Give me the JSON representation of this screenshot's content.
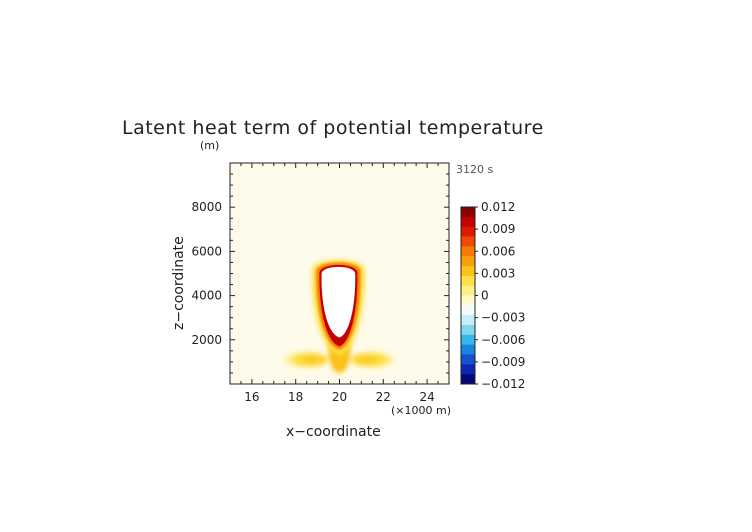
{
  "chart_data": {
    "type": "heatmap",
    "title": "Latent heat term of potential temperature",
    "time_label": "3120 s",
    "xlabel": "x−coordinate",
    "ylabel": "z−coordinate",
    "x_unit_label": "(×1000 m)",
    "y_unit_label": "(m)",
    "xlim": [
      15,
      25
    ],
    "ylim": [
      0,
      10000
    ],
    "xticks": [
      16,
      18,
      20,
      22,
      24
    ],
    "yticks": [
      2000,
      4000,
      6000,
      8000
    ],
    "xtick_labels": [
      "16",
      "18",
      "20",
      "22",
      "24"
    ],
    "ytick_labels": [
      "2000",
      "4000",
      "6000",
      "8000"
    ],
    "background_value": 0.0005,
    "colorbar": {
      "ticks": [
        0.012,
        0.009,
        0.006,
        0.003,
        0,
        -0.003,
        -0.006,
        -0.009,
        -0.012
      ],
      "tick_labels": [
        "0.012",
        "0.009",
        "0.006",
        "0.003",
        "0",
        "−0.003",
        "−0.006",
        "−0.009",
        "−0.012"
      ],
      "colors": [
        "#8b0000",
        "#c40000",
        "#e01a00",
        "#f04a00",
        "#f57b00",
        "#fa9e0a",
        "#fcc016",
        "#fde046",
        "#fdf085",
        "#fefbc8",
        "#f4fbff",
        "#c6eef8",
        "#7fd8f0",
        "#32b8e8",
        "#1a84e0",
        "#1450d0",
        "#0c28b0",
        "#05087a"
      ]
    },
    "features": [
      {
        "name": "cloud-core-saturated",
        "value_above_max": true,
        "x": [
          19.15,
          20.75
        ],
        "z": [
          2100,
          5400
        ]
      },
      {
        "name": "heating-rim",
        "value": 0.012,
        "x": [
          19.05,
          20.85
        ],
        "z": [
          1700,
          5500
        ]
      },
      {
        "name": "left-low-heating",
        "value": 0.003,
        "x": [
          17.2,
          19.5
        ],
        "z": [
          800,
          1400
        ]
      },
      {
        "name": "right-low-heating",
        "value": 0.003,
        "x": [
          20.5,
          22.8
        ],
        "z": [
          800,
          1400
        ]
      }
    ]
  }
}
